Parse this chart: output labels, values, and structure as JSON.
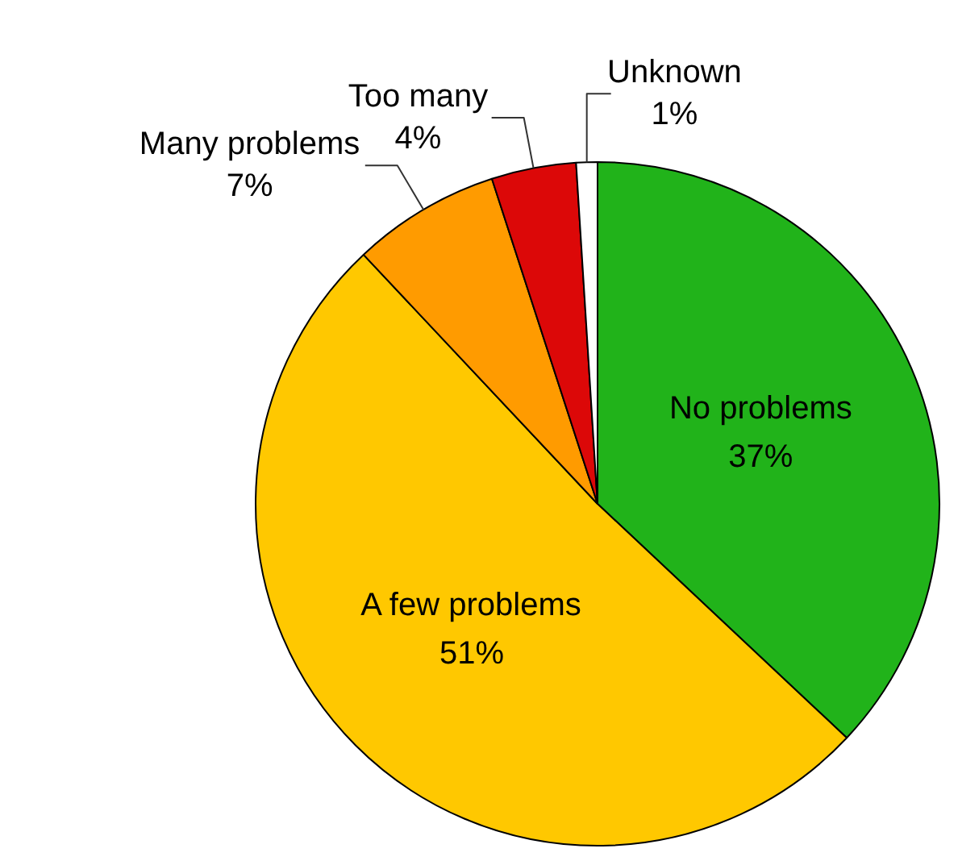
{
  "chart_data": {
    "type": "pie",
    "categories": [
      "No problems",
      "A few problems",
      "Many problems",
      "Too many",
      "Unknown"
    ],
    "values": [
      37,
      51,
      7,
      4,
      1
    ],
    "value_labels": [
      "37%",
      "51%",
      "7%",
      "4%",
      "1%"
    ],
    "colors": [
      "#21b31a",
      "#ffc800",
      "#ff9b00",
      "#dc0808",
      "#ffffff"
    ]
  }
}
